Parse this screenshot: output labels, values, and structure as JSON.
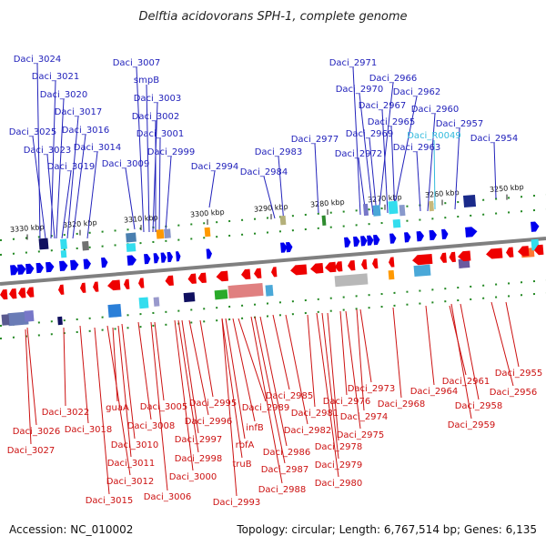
{
  "title": "Delftia acidovorans SPH-1, complete genome",
  "footer": {
    "accession": "Accession: NC_010002",
    "summary": "Topology: circular; Length: 6,767,514 bp; Genes: 6,135"
  },
  "ticks": [
    "3330 kbp",
    "3320 kbp",
    "3310 kbp",
    "3300 kbp",
    "3290 kbp",
    "3280 kbp",
    "3270 kbp",
    "3260 kbp",
    "3250 kbp"
  ],
  "top_genes": [
    {
      "name": "Daci_3024"
    },
    {
      "name": "Daci_3021"
    },
    {
      "name": "Daci_3020"
    },
    {
      "name": "Daci_3017"
    },
    {
      "name": "Daci_3025"
    },
    {
      "name": "Daci_3016"
    },
    {
      "name": "Daci_3023"
    },
    {
      "name": "Daci_3014"
    },
    {
      "name": "Daci_3019"
    },
    {
      "name": "Daci_3007"
    },
    {
      "name": "smpB"
    },
    {
      "name": "Daci_3003"
    },
    {
      "name": "Daci_3002"
    },
    {
      "name": "Daci_3001"
    },
    {
      "name": "Daci_2999"
    },
    {
      "name": "Daci_3009"
    },
    {
      "name": "Daci_2994"
    },
    {
      "name": "Daci_2983"
    },
    {
      "name": "Daci_2984"
    },
    {
      "name": "Daci_2977"
    },
    {
      "name": "Daci_2971"
    },
    {
      "name": "Daci_2966"
    },
    {
      "name": "Daci_2970"
    },
    {
      "name": "Daci_2962"
    },
    {
      "name": "Daci_2967"
    },
    {
      "name": "Daci_2960"
    },
    {
      "name": "Daci_2965"
    },
    {
      "name": "Daci_2957"
    },
    {
      "name": "Daci_2969"
    },
    {
      "name": "Daci_R0049",
      "rna": true
    },
    {
      "name": "Daci_2954"
    },
    {
      "name": "Daci_2963"
    },
    {
      "name": "Daci_2972"
    }
  ],
  "bottom_genes": [
    {
      "name": "Daci_3022"
    },
    {
      "name": "guaA"
    },
    {
      "name": "Daci_3005"
    },
    {
      "name": "Daci_2995"
    },
    {
      "name": "Daci_2989"
    },
    {
      "name": "Daci_2985"
    },
    {
      "name": "Daci_2981"
    },
    {
      "name": "Daci_2976"
    },
    {
      "name": "Daci_2973"
    },
    {
      "name": "Daci_2968"
    },
    {
      "name": "Daci_2974"
    },
    {
      "name": "Daci_2964"
    },
    {
      "name": "Daci_2961"
    },
    {
      "name": "Daci_2958"
    },
    {
      "name": "Daci_2955"
    },
    {
      "name": "Daci_2956"
    },
    {
      "name": "Daci_2959"
    },
    {
      "name": "Daci_3026"
    },
    {
      "name": "Daci_3018"
    },
    {
      "name": "Daci_3008"
    },
    {
      "name": "Daci_2996"
    },
    {
      "name": "infB"
    },
    {
      "name": "Daci_2982"
    },
    {
      "name": "Daci_2975"
    },
    {
      "name": "Daci_3027"
    },
    {
      "name": "Daci_3010"
    },
    {
      "name": "Daci_2997"
    },
    {
      "name": "rbfA"
    },
    {
      "name": "Daci_2978"
    },
    {
      "name": "Daci_3011"
    },
    {
      "name": "Daci_2998"
    },
    {
      "name": "Daci_2986"
    },
    {
      "name": "truB"
    },
    {
      "name": "Daci_2979"
    },
    {
      "name": "Daci_3012"
    },
    {
      "name": "Daci_3000"
    },
    {
      "name": "Daci_2987"
    },
    {
      "name": "Daci_2980"
    },
    {
      "name": "Daci_2988"
    },
    {
      "name": "Daci_3015"
    },
    {
      "name": "Daci_3006"
    },
    {
      "name": "Daci_2993"
    }
  ],
  "colors": {
    "forward_gene": "#0000ee",
    "reverse_gene": "#ee0000",
    "top_label": "#2222bb",
    "bottom_label": "#cc1111",
    "rna_label": "#33bbdd",
    "backbone": "#808080",
    "tick_marks": "#228822"
  }
}
